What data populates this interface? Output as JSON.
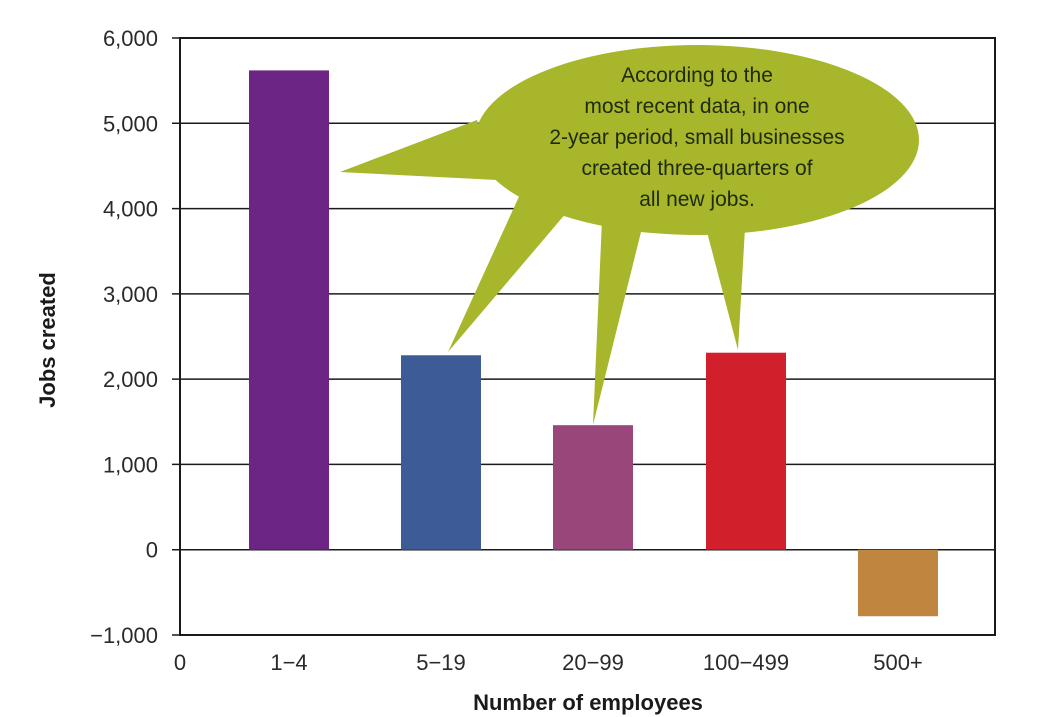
{
  "chart_data": {
    "type": "bar",
    "categories": [
      "1−4",
      "5−19",
      "20−99",
      "100−499",
      "500+"
    ],
    "values": [
      5620,
      2280,
      1460,
      2310,
      -780
    ],
    "colors": [
      "#6c2485",
      "#3d5c97",
      "#99477a",
      "#d11f2b",
      "#c0853e"
    ],
    "x_origin_label": "0",
    "xlabel": "Number of employees",
    "ylabel": "Jobs created",
    "ylim": [
      -1000,
      6000
    ],
    "yticks": [
      -1000,
      0,
      1000,
      2000,
      3000,
      4000,
      5000,
      6000
    ],
    "ytick_labels": [
      "−1,000",
      "0",
      "1,000",
      "2,000",
      "3,000",
      "4,000",
      "5,000",
      "6,000"
    ],
    "grid": true,
    "annotation": {
      "lines": [
        "According to the",
        "most recent data, in one",
        "2-year period, small businesses",
        "created three-quarters of",
        "all new jobs."
      ],
      "color": "#a8b62c",
      "points_to": [
        "1−4",
        "5−19",
        "20−99",
        "100−499"
      ]
    }
  }
}
